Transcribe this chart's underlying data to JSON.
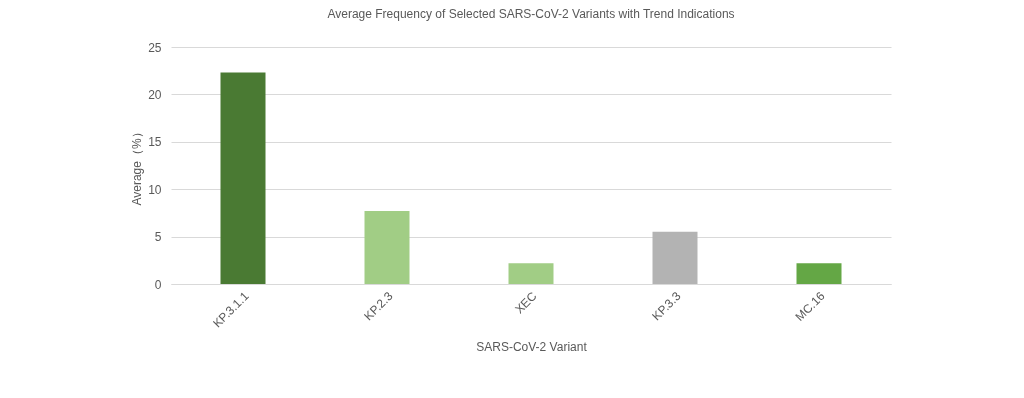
{
  "chart_data": {
    "type": "bar",
    "title": "Average Frequency of Selected SARS-CoV-2 Variants with Trend Indications",
    "xlabel": "SARS-CoV-2 Variant",
    "ylabel": "Average（%）",
    "categories": [
      "KP.3.1.1",
      "KP.2.3",
      "XEC",
      "KP.3.3",
      "MC.16"
    ],
    "values": [
      22.3,
      7.7,
      2.2,
      5.5,
      2.2
    ],
    "colors": [
      "#4a7a33",
      "#a1cd85",
      "#a1cd85",
      "#b3b3b3",
      "#64a745"
    ],
    "ylim": [
      0,
      25
    ],
    "yticks": [
      0,
      5,
      10,
      15,
      20,
      25
    ],
    "grid": "y"
  }
}
